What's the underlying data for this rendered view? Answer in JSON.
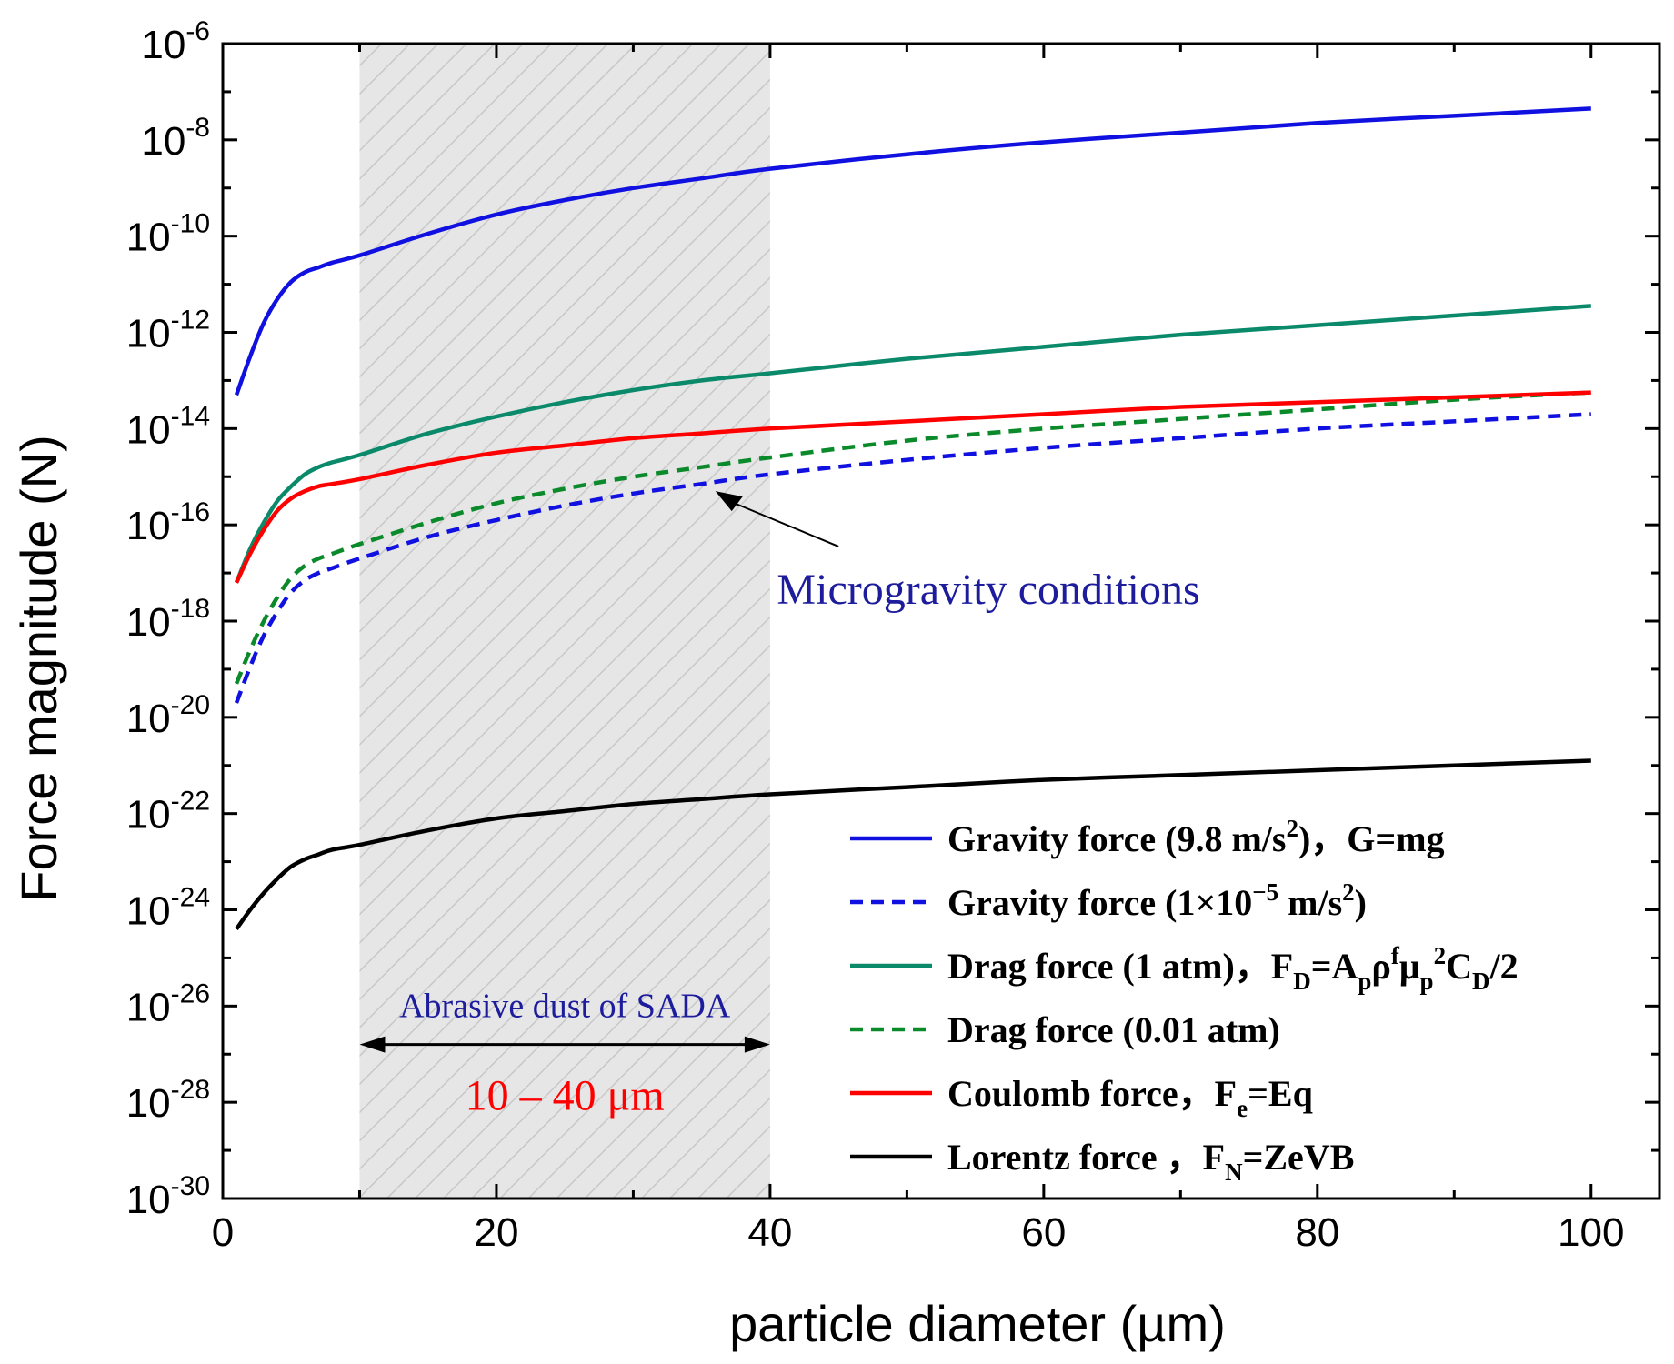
{
  "chart_data": {
    "type": "line",
    "title": "",
    "xlabel": "particle diameter (µm)",
    "ylabel": "Force magnitude (N)",
    "xlim": [
      0,
      105
    ],
    "ylim_log10": [
      -30,
      -6
    ],
    "x_ticks": [
      0,
      20,
      40,
      60,
      80,
      100
    ],
    "y_tick_exponents": [
      -6,
      -8,
      -10,
      -12,
      -14,
      -16,
      -18,
      -20,
      -22,
      -24,
      -26,
      -28,
      -30
    ],
    "y_tick_base": "10",
    "x": [
      1,
      2,
      3,
      4,
      5,
      6,
      7,
      8,
      10,
      15,
      20,
      25,
      30,
      35,
      40,
      50,
      60,
      70,
      80,
      90,
      100
    ],
    "series": [
      {
        "name": "Gravity force (9.8 m/s²), G=mg",
        "color": "#1010e0",
        "dash": "solid",
        "log10_values": [
          -13.3,
          -12.5,
          -11.8,
          -11.3,
          -10.95,
          -10.75,
          -10.65,
          -10.55,
          -10.4,
          -9.95,
          -9.55,
          -9.25,
          -9.0,
          -8.8,
          -8.6,
          -8.3,
          -8.05,
          -7.85,
          -7.65,
          -7.5,
          -7.35
        ]
      },
      {
        "name": "Gravity force (1×10⁻⁵ m/s²)",
        "color": "#1010e0",
        "dash": "dashed",
        "log10_values": [
          -19.7,
          -18.95,
          -18.3,
          -17.8,
          -17.4,
          -17.15,
          -17.0,
          -16.9,
          -16.7,
          -16.25,
          -15.9,
          -15.6,
          -15.35,
          -15.15,
          -14.95,
          -14.65,
          -14.4,
          -14.2,
          -14.0,
          -13.85,
          -13.7
        ]
      },
      {
        "name": "Drag force (1 atm), F_D=A_p ρ^f μ_p² C_D/2",
        "color": "#0a8a6a",
        "dash": "solid",
        "log10_values": [
          -17.2,
          -16.5,
          -15.95,
          -15.5,
          -15.2,
          -14.95,
          -14.8,
          -14.7,
          -14.55,
          -14.1,
          -13.75,
          -13.45,
          -13.2,
          -13.0,
          -12.85,
          -12.55,
          -12.3,
          -12.05,
          -11.85,
          -11.65,
          -11.45
        ]
      },
      {
        "name": "Drag force (0.01 atm)",
        "color": "#0a8a2a",
        "dash": "dashed",
        "log10_values": [
          -19.3,
          -18.6,
          -18.0,
          -17.5,
          -17.1,
          -16.85,
          -16.7,
          -16.6,
          -16.4,
          -15.95,
          -15.55,
          -15.25,
          -15.0,
          -14.8,
          -14.6,
          -14.25,
          -14.0,
          -13.8,
          -13.6,
          -13.4,
          -13.25
        ]
      },
      {
        "name": "Coulomb force, F_e=Eq",
        "color": "#ff0000",
        "dash": "solid",
        "log10_values": [
          -17.2,
          -16.6,
          -16.1,
          -15.7,
          -15.45,
          -15.3,
          -15.2,
          -15.15,
          -15.05,
          -14.75,
          -14.5,
          -14.35,
          -14.2,
          -14.1,
          -14.0,
          -13.85,
          -13.7,
          -13.55,
          -13.45,
          -13.35,
          -13.25
        ]
      },
      {
        "name": "Lorentz force, F_N=ZeVB",
        "color": "#000000",
        "dash": "solid",
        "log10_values": [
          -24.4,
          -24.0,
          -23.65,
          -23.35,
          -23.1,
          -22.95,
          -22.85,
          -22.75,
          -22.65,
          -22.35,
          -22.1,
          -21.95,
          -21.8,
          -21.7,
          -21.6,
          -21.45,
          -21.3,
          -21.2,
          -21.1,
          -21.0,
          -20.9
        ]
      }
    ],
    "legend_entries": [
      {
        "label_main": "Gravity force (9.8 m/s",
        "label_sup": "2",
        "label_rest": ")，G=mg",
        "series_index": 0
      },
      {
        "label_main": "Gravity force (1×10",
        "label_sup": "−5",
        "label_mid": " m/s",
        "label_sup2": "2",
        "label_rest": ")",
        "series_index": 1
      },
      {
        "label_main": "Drag force (1 atm)，F",
        "label_sub": "D",
        "label_rest": "=A",
        "label_sub2": "p",
        "label_rest2": "ρ",
        "label_sup": "f",
        "label_rest3": "μ",
        "label_sub3": "p",
        "label_sup2": "2",
        "label_rest4": "C",
        "label_sub4": "D",
        "label_rest5": "/2",
        "series_index": 2
      },
      {
        "label_main": "Drag force (0.01 atm)",
        "series_index": 3
      },
      {
        "label_main": "Coulomb force，F",
        "label_sub": "e",
        "label_rest": "=Eq",
        "series_index": 4
      },
      {
        "label_main": "Lorentz force ，F",
        "label_sub": "N",
        "label_rest": "=ZeVB",
        "series_index": 5
      }
    ],
    "shaded_region": {
      "x_start": 10,
      "x_end": 40,
      "fill": "#e6e6e6",
      "hatch_color": "#c8c8c8"
    },
    "annotations": {
      "microgravity": {
        "text": "Microgravity conditions",
        "color": "#1c1c9c",
        "arrow_to_x": 36,
        "arrow_to_log10": -15.3
      },
      "abrasive": {
        "text": "Abrasive dust of SADA",
        "color": "#1c1c9c"
      },
      "range": {
        "text": "10 – 40 μm",
        "color": "#ff0000",
        "from_x": 10,
        "to_x": 40
      }
    }
  }
}
